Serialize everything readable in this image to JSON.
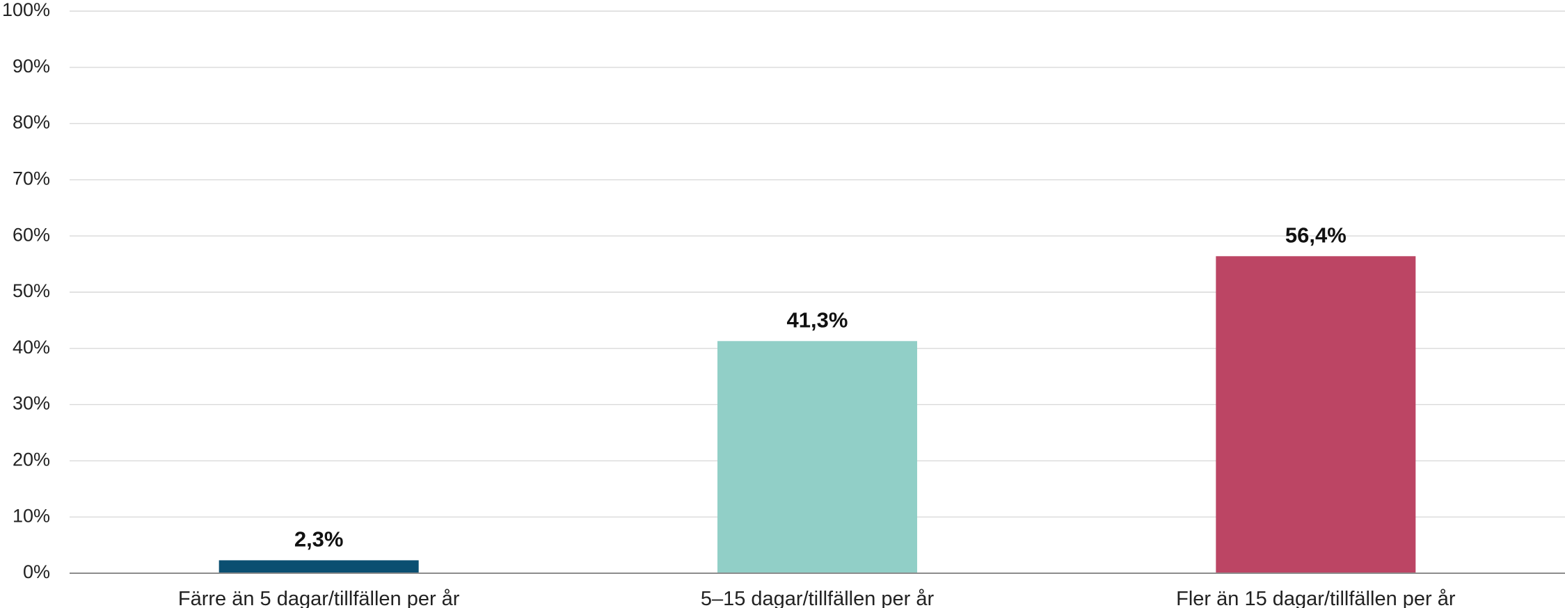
{
  "chart_data": {
    "type": "bar",
    "categories": [
      "Färre än 5 dagar/tillfällen per år",
      "5–15 dagar/tillfällen per år",
      "Fler än 15 dagar/tillfällen per år"
    ],
    "values": [
      2.3,
      41.3,
      56.4
    ],
    "value_labels": [
      "2,3%",
      "41,3%",
      "56,4%"
    ],
    "colors": [
      "#0b4f71",
      "#91cfc7",
      "#bc4564"
    ],
    "title": "",
    "xlabel": "",
    "ylabel": "",
    "ylim": [
      0,
      100
    ],
    "y_ticks": [
      0,
      10,
      20,
      30,
      40,
      50,
      60,
      70,
      80,
      90,
      100
    ],
    "y_tick_labels": [
      "0%",
      "10%",
      "20%",
      "30%",
      "40%",
      "50%",
      "60%",
      "70%",
      "80%",
      "90%",
      "100%"
    ],
    "grid": true,
    "legend": "none"
  }
}
